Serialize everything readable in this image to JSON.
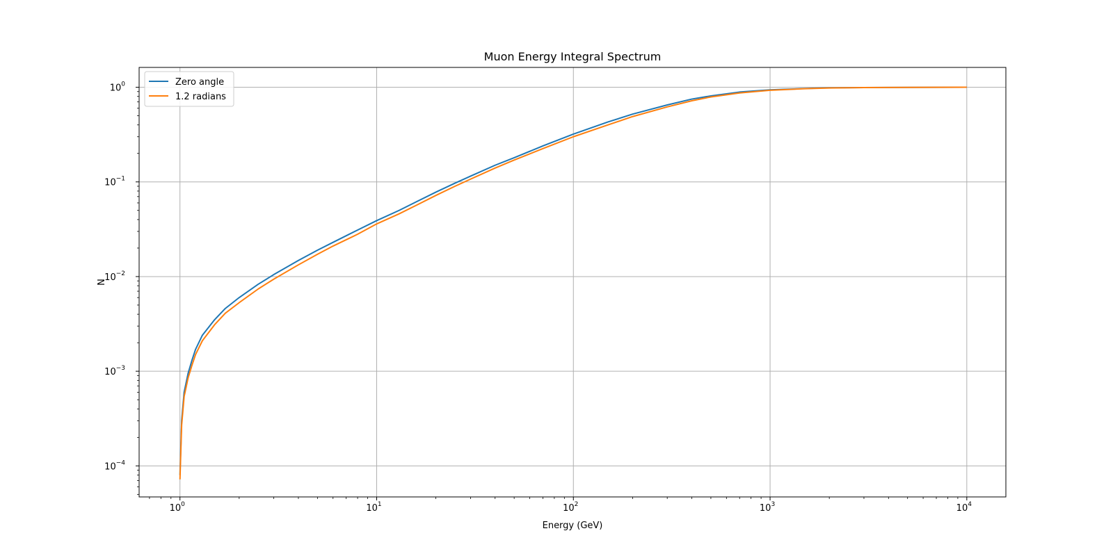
{
  "chart_data": {
    "type": "line",
    "title": "Muon Energy Integral Spectrum",
    "xlabel": "Energy (GeV)",
    "ylabel": "N",
    "xscale": "log",
    "yscale": "log",
    "xlim": [
      0.62,
      15800.0
    ],
    "ylim": [
      4.7e-05,
      1.62
    ],
    "grid": true,
    "legend_position": "top-left",
    "x_ticks": [
      {
        "value": 1,
        "base": "10",
        "exp": "0"
      },
      {
        "value": 10,
        "base": "10",
        "exp": "1"
      },
      {
        "value": 100,
        "base": "10",
        "exp": "2"
      },
      {
        "value": 1000,
        "base": "10",
        "exp": "3"
      },
      {
        "value": 10000,
        "base": "10",
        "exp": "4"
      }
    ],
    "y_ticks": [
      {
        "value": 0.0001,
        "base": "10",
        "exp": "−4"
      },
      {
        "value": 0.001,
        "base": "10",
        "exp": "−3"
      },
      {
        "value": 0.01,
        "base": "10",
        "exp": "−2"
      },
      {
        "value": 0.1,
        "base": "10",
        "exp": "−1"
      },
      {
        "value": 1,
        "base": "10",
        "exp": "0"
      }
    ],
    "series": [
      {
        "name": "Zero angle",
        "color": "#1f77b4",
        "x": [
          1.0,
          1.02,
          1.05,
          1.1,
          1.15,
          1.2,
          1.3,
          1.5,
          1.7,
          2,
          2.5,
          3,
          4,
          5,
          6,
          7,
          8,
          10,
          13,
          16,
          20,
          25,
          30,
          40,
          50,
          70,
          100,
          150,
          200,
          300,
          400,
          500,
          700,
          1000,
          1500,
          2000,
          3000,
          5000,
          7000,
          10000
        ],
        "y": [
          8e-05,
          0.0003,
          0.0006,
          0.00095,
          0.0013,
          0.0017,
          0.0024,
          0.0035,
          0.0046,
          0.006,
          0.0083,
          0.0105,
          0.0148,
          0.019,
          0.023,
          0.027,
          0.031,
          0.039,
          0.05,
          0.062,
          0.078,
          0.097,
          0.115,
          0.15,
          0.18,
          0.24,
          0.32,
          0.43,
          0.52,
          0.65,
          0.75,
          0.81,
          0.89,
          0.94,
          0.97,
          0.985,
          0.993,
          0.997,
          0.999,
          1.0
        ]
      },
      {
        "name": "1.2 radians",
        "color": "#ff7f0e",
        "x": [
          1.0,
          1.02,
          1.05,
          1.1,
          1.15,
          1.2,
          1.3,
          1.5,
          1.7,
          2,
          2.5,
          3,
          4,
          5,
          6,
          7,
          8,
          10,
          13,
          16,
          20,
          25,
          30,
          40,
          50,
          70,
          100,
          150,
          200,
          300,
          400,
          500,
          700,
          1000,
          1500,
          2000,
          3000,
          5000,
          7000,
          10000
        ],
        "y": [
          7.2e-05,
          0.00027,
          0.00054,
          0.00085,
          0.00115,
          0.0015,
          0.0021,
          0.0031,
          0.0041,
          0.0053,
          0.0074,
          0.0094,
          0.0133,
          0.0172,
          0.021,
          0.0245,
          0.028,
          0.036,
          0.046,
          0.057,
          0.072,
          0.09,
          0.107,
          0.14,
          0.17,
          0.225,
          0.3,
          0.4,
          0.49,
          0.62,
          0.72,
          0.79,
          0.87,
          0.93,
          0.965,
          0.982,
          0.992,
          0.997,
          0.999,
          1.0
        ]
      }
    ]
  }
}
